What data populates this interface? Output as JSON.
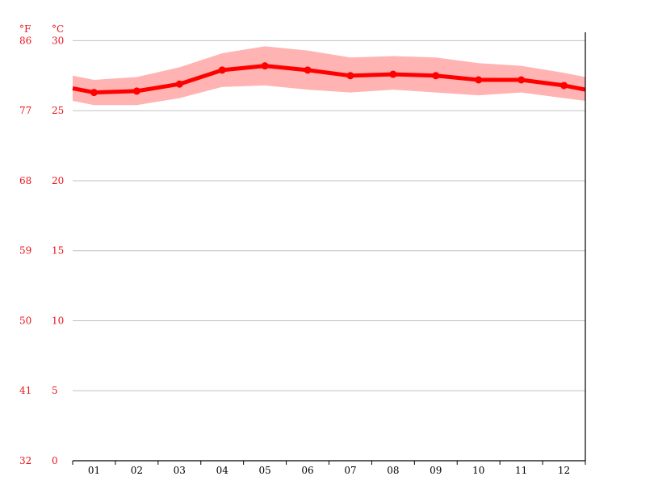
{
  "chart_data": {
    "type": "line",
    "units": {
      "fahrenheit": "°F",
      "celsius": "°C"
    },
    "y_ticks_c": [
      0,
      5,
      10,
      15,
      20,
      25,
      30
    ],
    "y_ticks_f": [
      32,
      41,
      50,
      59,
      68,
      77,
      86
    ],
    "ylim": [
      0,
      30.6
    ],
    "categories": [
      "01",
      "02",
      "03",
      "04",
      "05",
      "06",
      "07",
      "08",
      "09",
      "10",
      "11",
      "12"
    ],
    "values": [
      26.3,
      26.4,
      26.9,
      27.9,
      28.2,
      27.9,
      27.5,
      27.6,
      27.5,
      27.2,
      27.2,
      26.8
    ],
    "band_high": [
      27.2,
      27.4,
      28.1,
      29.1,
      29.6,
      29.3,
      28.8,
      28.9,
      28.8,
      28.4,
      28.2,
      27.7
    ],
    "band_low": [
      25.4,
      25.4,
      25.9,
      26.7,
      26.8,
      26.5,
      26.3,
      26.5,
      26.3,
      26.1,
      26.3,
      25.9
    ],
    "edge_values": {
      "left": 26.6,
      "right": 26.5
    },
    "edge_band_high": {
      "left": 27.5,
      "right": 27.4
    },
    "edge_band_low": {
      "left": 25.7,
      "right": 25.7
    },
    "colors": {
      "line": "#ff0000",
      "band": "#ffb3b3",
      "tick_labels": "#e8141b",
      "grid": "#c0c0c0"
    },
    "grid": true,
    "legend": "none"
  }
}
